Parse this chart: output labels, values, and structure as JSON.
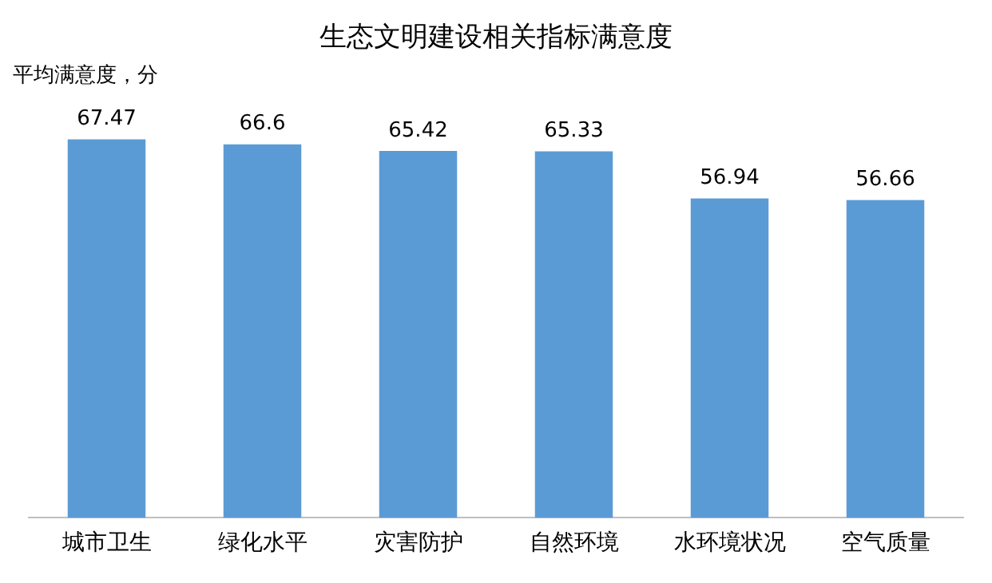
{
  "chart_data": {
    "type": "bar",
    "title": "生态文明建设相关指标满意度",
    "ylabel": "平均满意度，分",
    "categories": [
      "城市卫生",
      "绿化水平",
      "灾害防护",
      "自然环境",
      "水环境状况",
      "空气质量"
    ],
    "values": [
      67.47,
      66.6,
      65.42,
      65.33,
      56.94,
      56.66
    ],
    "color": "#5b9bd5",
    "tick_labels": "x",
    "data_labels": true,
    "grid": false,
    "legend": false
  }
}
